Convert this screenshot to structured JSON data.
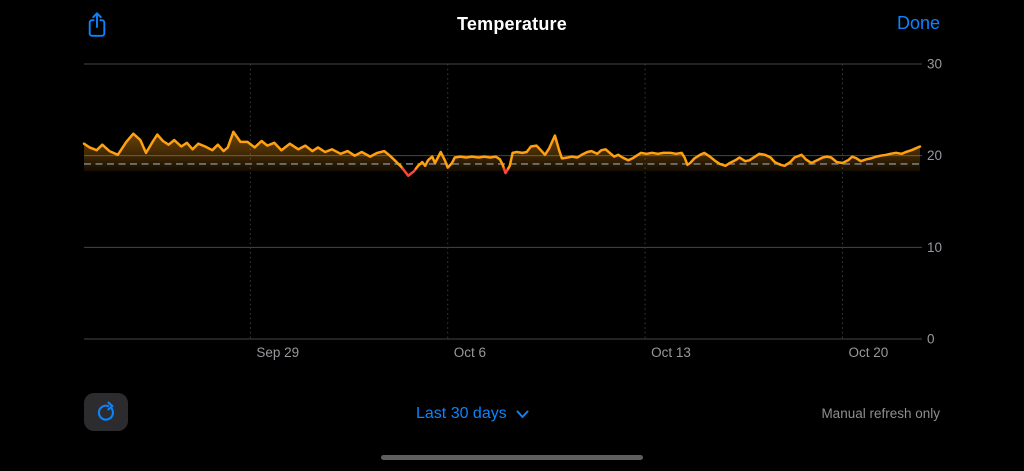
{
  "header": {
    "title": "Temperature",
    "done_label": "Done"
  },
  "footer": {
    "range_selector": "Last 30 days",
    "refresh_note": "Manual refresh only"
  },
  "colors": {
    "accent_blue": "#0A84FF",
    "line_orange": "#FFA00F",
    "alert_red": "#FF453A",
    "background": "#000000",
    "grid": "#46464A",
    "grid_dotted": "#3E3E42",
    "threshold_dash": "#6E6E72",
    "tick_label": "#98989E",
    "muted_text": "#8E8E93",
    "button_bg": "#2C2C2E"
  },
  "chart_data": {
    "type": "area",
    "title": "Temperature",
    "xlabel": "",
    "ylabel": "",
    "ylim": [
      0,
      30
    ],
    "grid": true,
    "legend": false,
    "y_ticks": [
      {
        "value": 30,
        "label": "30"
      },
      {
        "value": 20,
        "label": "20"
      },
      {
        "value": 10,
        "label": "10"
      },
      {
        "value": 0,
        "label": "0"
      }
    ],
    "x_ticks": [
      {
        "day": 5.9,
        "label": "Sep 29"
      },
      {
        "day": 12.9,
        "label": "Oct 6"
      },
      {
        "day": 19.9,
        "label": "Oct 13"
      },
      {
        "day": 26.9,
        "label": "Oct 20"
      }
    ],
    "x_range_days": [
      0,
      29.65
    ],
    "threshold_line": 19.1,
    "alert_below": 18.6,
    "fill_base": 18.3,
    "series": [
      {
        "name": "Temperature",
        "points": [
          [
            0,
            21.3
          ],
          [
            0.2,
            20.9
          ],
          [
            0.45,
            20.6
          ],
          [
            0.65,
            21.2
          ],
          [
            0.9,
            20.5
          ],
          [
            1.2,
            20.1
          ],
          [
            1.5,
            21.5
          ],
          [
            1.75,
            22.4
          ],
          [
            2.0,
            21.7
          ],
          [
            2.2,
            20.3
          ],
          [
            2.45,
            21.6
          ],
          [
            2.6,
            22.3
          ],
          [
            2.8,
            21.6
          ],
          [
            3.0,
            21.2
          ],
          [
            3.2,
            21.7
          ],
          [
            3.45,
            21.0
          ],
          [
            3.65,
            21.4
          ],
          [
            3.85,
            20.7
          ],
          [
            4.05,
            21.3
          ],
          [
            4.3,
            21.0
          ],
          [
            4.55,
            20.6
          ],
          [
            4.75,
            21.2
          ],
          [
            4.95,
            20.5
          ],
          [
            5.1,
            20.9
          ],
          [
            5.3,
            22.6
          ],
          [
            5.55,
            21.5
          ],
          [
            5.8,
            21.5
          ],
          [
            6.05,
            20.9
          ],
          [
            6.3,
            21.6
          ],
          [
            6.5,
            21.1
          ],
          [
            6.75,
            21.4
          ],
          [
            7.0,
            20.6
          ],
          [
            7.3,
            21.3
          ],
          [
            7.6,
            20.7
          ],
          [
            7.85,
            21.1
          ],
          [
            8.1,
            20.5
          ],
          [
            8.3,
            20.9
          ],
          [
            8.55,
            20.4
          ],
          [
            8.8,
            20.7
          ],
          [
            9.1,
            20.2
          ],
          [
            9.35,
            20.5
          ],
          [
            9.6,
            20.0
          ],
          [
            9.85,
            20.4
          ],
          [
            10.15,
            19.9
          ],
          [
            10.4,
            20.3
          ],
          [
            10.65,
            20.5
          ],
          [
            10.85,
            20.0
          ],
          [
            11.05,
            19.4
          ],
          [
            11.25,
            18.8
          ],
          [
            11.5,
            17.8
          ],
          [
            11.7,
            18.3
          ],
          [
            11.85,
            18.9
          ],
          [
            12.0,
            19.3
          ],
          [
            12.1,
            18.9
          ],
          [
            12.2,
            19.5
          ],
          [
            12.35,
            19.9
          ],
          [
            12.45,
            19.2
          ],
          [
            12.55,
            19.8
          ],
          [
            12.65,
            20.4
          ],
          [
            12.8,
            19.5
          ],
          [
            12.9,
            18.7
          ],
          [
            13.05,
            19.2
          ],
          [
            13.15,
            19.8
          ],
          [
            13.35,
            19.9
          ],
          [
            13.55,
            19.8
          ],
          [
            13.75,
            19.9
          ],
          [
            14.0,
            19.8
          ],
          [
            14.2,
            19.9
          ],
          [
            14.4,
            19.8
          ],
          [
            14.6,
            19.9
          ],
          [
            14.75,
            19.6
          ],
          [
            14.85,
            19.0
          ],
          [
            14.95,
            18.1
          ],
          [
            15.1,
            18.9
          ],
          [
            15.2,
            20.3
          ],
          [
            15.35,
            20.4
          ],
          [
            15.55,
            20.3
          ],
          [
            15.7,
            20.4
          ],
          [
            15.85,
            21.0
          ],
          [
            16.05,
            21.1
          ],
          [
            16.2,
            20.6
          ],
          [
            16.35,
            20.1
          ],
          [
            16.5,
            20.8
          ],
          [
            16.7,
            22.2
          ],
          [
            16.85,
            20.6
          ],
          [
            16.95,
            19.7
          ],
          [
            17.15,
            19.8
          ],
          [
            17.3,
            19.9
          ],
          [
            17.5,
            19.8
          ],
          [
            17.65,
            20.1
          ],
          [
            17.85,
            20.4
          ],
          [
            18.0,
            20.5
          ],
          [
            18.2,
            20.2
          ],
          [
            18.35,
            20.6
          ],
          [
            18.5,
            20.7
          ],
          [
            18.65,
            20.3
          ],
          [
            18.8,
            19.9
          ],
          [
            18.95,
            20.1
          ],
          [
            19.1,
            19.8
          ],
          [
            19.3,
            19.5
          ],
          [
            19.45,
            19.7
          ],
          [
            19.6,
            20.0
          ],
          [
            19.75,
            20.3
          ],
          [
            19.95,
            20.2
          ],
          [
            20.15,
            20.3
          ],
          [
            20.35,
            20.2
          ],
          [
            20.55,
            20.3
          ],
          [
            20.8,
            20.3
          ],
          [
            21.0,
            20.2
          ],
          [
            21.2,
            20.3
          ],
          [
            21.3,
            19.8
          ],
          [
            21.4,
            19.0
          ],
          [
            21.5,
            19.2
          ],
          [
            21.65,
            19.7
          ],
          [
            21.85,
            20.1
          ],
          [
            22.0,
            20.3
          ],
          [
            22.2,
            19.9
          ],
          [
            22.4,
            19.4
          ],
          [
            22.55,
            19.1
          ],
          [
            22.75,
            18.9
          ],
          [
            22.9,
            19.2
          ],
          [
            23.1,
            19.5
          ],
          [
            23.25,
            19.8
          ],
          [
            23.45,
            19.4
          ],
          [
            23.6,
            19.5
          ],
          [
            23.8,
            19.9
          ],
          [
            23.95,
            20.2
          ],
          [
            24.15,
            20.1
          ],
          [
            24.35,
            19.8
          ],
          [
            24.5,
            19.3
          ],
          [
            24.7,
            19.0
          ],
          [
            24.85,
            18.9
          ],
          [
            25.05,
            19.3
          ],
          [
            25.2,
            19.8
          ],
          [
            25.45,
            20.1
          ],
          [
            25.6,
            19.6
          ],
          [
            25.8,
            19.2
          ],
          [
            26.0,
            19.5
          ],
          [
            26.2,
            19.8
          ],
          [
            26.35,
            19.9
          ],
          [
            26.5,
            19.8
          ],
          [
            26.7,
            19.3
          ],
          [
            26.9,
            19.2
          ],
          [
            27.1,
            19.5
          ],
          [
            27.25,
            19.9
          ],
          [
            27.4,
            19.7
          ],
          [
            27.55,
            19.4
          ],
          [
            27.75,
            19.6
          ],
          [
            27.9,
            19.7
          ],
          [
            28.1,
            19.9
          ],
          [
            28.25,
            20.0
          ],
          [
            28.45,
            20.1
          ],
          [
            28.6,
            20.2
          ],
          [
            28.8,
            20.3
          ],
          [
            29.0,
            20.2
          ],
          [
            29.15,
            20.4
          ],
          [
            29.35,
            20.6
          ],
          [
            29.5,
            20.8
          ],
          [
            29.65,
            21.0
          ]
        ]
      }
    ]
  }
}
